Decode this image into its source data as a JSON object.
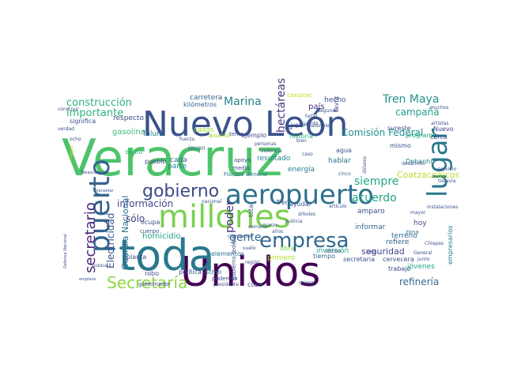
{
  "words": [
    {
      "text": "Veracruz",
      "color": "#4ec36b"
    },
    {
      "text": "Unidos",
      "color": "#440154"
    },
    {
      "text": "toda",
      "color": "#2a788e"
    },
    {
      "text": "Nuevo León",
      "color": "#3b528b"
    },
    {
      "text": "millones",
      "color": "#7ad151"
    },
    {
      "text": "aeropuerto",
      "color": "#2c718e"
    },
    {
      "text": "lugar",
      "color": "#2a788e"
    },
    {
      "text": "puerto",
      "color": "#33638d"
    },
    {
      "text": "empresa",
      "color": "#31688e"
    },
    {
      "text": "gobierno",
      "color": "#3e4a89"
    },
    {
      "text": "Secretaría",
      "color": "#8fd744"
    },
    {
      "text": "secretario",
      "color": "#482878"
    },
    {
      "text": "construcción",
      "color": "#2db27d"
    },
    {
      "text": "importante",
      "color": "#2db27d"
    },
    {
      "text": "Marina",
      "color": "#26828e"
    },
    {
      "text": "Tren Maya",
      "color": "#21918c"
    },
    {
      "text": "campaña",
      "color": "#1f9e89"
    },
    {
      "text": "acuerdo",
      "color": "#20a386"
    },
    {
      "text": "siempre",
      "color": "#22a884"
    },
    {
      "text": "gente",
      "color": "#31688e"
    },
    {
      "text": "información",
      "color": "#3e4a89"
    },
    {
      "text": "refinería",
      "color": "#31688e"
    },
    {
      "text": "Comisión Federal",
      "color": "#21918c"
    },
    {
      "text": "hectáreas",
      "color": "#46337e"
    },
    {
      "text": "Coatzacoalcos",
      "color": "#b5de2b"
    },
    {
      "text": "Electricidad",
      "color": "#3b528b"
    },
    {
      "text": "Guardia Nacional",
      "color": "#2c718e"
    },
    {
      "text": "seguridad",
      "color": "#414487"
    },
    {
      "text": "sólo",
      "color": "#414487"
    },
    {
      "text": "homicidio",
      "color": "#1fa187"
    },
    {
      "text": "poder",
      "color": "#46327e"
    },
    {
      "text": "gasolina",
      "color": "#3dbc74"
    },
    {
      "text": "respecto",
      "color": "#3e4989"
    },
    {
      "text": "significa",
      "color": "#3b528b"
    },
    {
      "text": "Tulum",
      "color": "#2a788e"
    },
    {
      "text": "carretera",
      "color": "#33638d"
    },
    {
      "text": "kilómetros",
      "color": "#33638d"
    },
    {
      "text": "país",
      "color": "#472d7b"
    },
    {
      "text": "hecho",
      "color": "#3b528b"
    },
    {
      "text": "favor",
      "color": "#3e4a89"
    },
    {
      "text": "sureste",
      "color": "#3b528b"
    },
    {
      "text": "programa",
      "color": "#22a884"
    },
    {
      "text": "Nuevo",
      "color": "#3e4a89"
    },
    {
      "text": "cerca",
      "color": "#3e4a89"
    },
    {
      "text": "agua",
      "color": "#3b528b"
    },
    {
      "text": "mismo",
      "color": "#3b528b"
    },
    {
      "text": "Debanhi",
      "color": "#26828e"
    },
    {
      "text": "hoy",
      "color": "#3e4a89"
    },
    {
      "text": "hablar",
      "color": "#2a788e"
    },
    {
      "text": "energía",
      "color": "#2a788e"
    },
    {
      "text": "resultado",
      "color": "#26828e"
    },
    {
      "text": "historia",
      "color": "#2db27d"
    },
    {
      "text": "cada",
      "color": "#31688e"
    },
    {
      "text": "parte",
      "color": "#26828e"
    },
    {
      "text": "joven",
      "color": "#31688e"
    },
    {
      "text": "delito",
      "color": "#2db27d"
    },
    {
      "text": "pueblo",
      "color": "#414487"
    },
    {
      "text": "asunto",
      "color": "#a0da39"
    },
    {
      "text": "ejemplo",
      "color": "#3e4989"
    },
    {
      "text": "tema",
      "color": "#3b528b"
    },
    {
      "text": "casos",
      "color": "#a0da39"
    },
    {
      "text": "conocer",
      "color": "#bddf26"
    },
    {
      "text": "amparo",
      "color": "#3b528b"
    },
    {
      "text": "informar",
      "color": "#31688e"
    },
    {
      "text": "terreno",
      "color": "#31688e"
    },
    {
      "text": "refiere",
      "color": "#31688e"
    },
    {
      "text": "zona",
      "color": "#2a788e"
    },
    {
      "text": "inversión",
      "color": "#20a386"
    },
    {
      "text": "obra",
      "color": "#7ad151"
    },
    {
      "text": "primero",
      "color": "#b5de2b"
    },
    {
      "text": "tiempo",
      "color": "#31688e"
    },
    {
      "text": "trabajo",
      "color": "#3e4a89"
    },
    {
      "text": "jóvenes",
      "color": "#20a386"
    },
    {
      "text": "secretaria",
      "color": "#3b528b"
    },
    {
      "text": "cervecera",
      "color": "#3b528b"
    },
    {
      "text": "robo",
      "color": "#3e4989"
    },
    {
      "text": "gobernador",
      "color": "#3e4989"
    },
    {
      "text": "política",
      "color": "#3b528b"
    },
    {
      "text": "istmo",
      "color": "#2a788e"
    },
    {
      "text": "podemos",
      "color": "#3b528b"
    },
    {
      "text": "cosa",
      "color": "#3b528b"
    },
    {
      "text": "elementos",
      "color": "#2a788e"
    },
    {
      "text": "planta",
      "color": "#3b528b"
    },
    {
      "text": "ocupa",
      "color": "#3b528b"
    },
    {
      "text": "cuerpo",
      "color": "#3b528b"
    },
    {
      "text": "total",
      "color": "#3b528b"
    },
    {
      "text": "ayudar",
      "color": "#3b528b"
    },
    {
      "text": "Tren",
      "color": "#3b528b"
    },
    {
      "text": "empresarios",
      "color": "#2a788e"
    },
    {
      "text": "seis",
      "color": "#3b528b"
    },
    {
      "text": "Fiscalía General",
      "color": "#2a788e"
    },
    {
      "text": "media",
      "color": "#3b528b"
    },
    {
      "text": "apoyo",
      "color": "#3e4989"
    },
    {
      "text": "servicio",
      "color": "#3b528b"
    },
    {
      "text": "dólares",
      "color": "#3b528b"
    },
    {
      "text": "todavía",
      "color": "#3b528b"
    },
    {
      "text": "cinco",
      "color": "#3b528b"
    },
    {
      "text": "personas",
      "color": "#3b528b"
    },
    {
      "text": "violencia",
      "color": "#3b528b"
    },
    {
      "text": "bien",
      "color": "#3b528b"
    },
    {
      "text": "caso",
      "color": "#3b528b"
    },
    {
      "text": "construir",
      "color": "#3b528b"
    },
    {
      "text": "verdad",
      "color": "#3b528b"
    },
    {
      "text": "ocho",
      "color": "#3b528b"
    },
    {
      "text": "llegar",
      "color": "#b5de2b"
    },
    {
      "text": "Tabasco",
      "color": "#3b528b"
    },
    {
      "text": "bienestar",
      "color": "#3b528b"
    },
    {
      "text": "nacional",
      "color": "#3b528b"
    },
    {
      "text": "gobierno federal",
      "color": "#3b528b"
    },
    {
      "text": "región",
      "color": "#3b528b"
    },
    {
      "text": "pública",
      "color": "#3b528b"
    },
    {
      "text": "empleos",
      "color": "#3b528b"
    },
    {
      "text": "Defensa Nacional",
      "color": "#3b528b"
    },
    {
      "text": "marzo",
      "color": "#3b528b"
    },
    {
      "text": "años",
      "color": "#3b528b"
    },
    {
      "text": "último",
      "color": "#3b528b"
    },
    {
      "text": "instalaciones",
      "color": "#3b528b"
    },
    {
      "text": "mayor",
      "color": "#3b528b"
    },
    {
      "text": "Chiapas",
      "color": "#3b528b"
    },
    {
      "text": "junto",
      "color": "#3b528b"
    },
    {
      "text": "presidente",
      "color": "#3b528b"
    },
    {
      "text": "hotel",
      "color": "#3b528b"
    },
    {
      "text": "lugares",
      "color": "#3b528b"
    },
    {
      "text": "cuanto",
      "color": "#3b528b"
    },
    {
      "text": "muchos",
      "color": "#3b528b"
    },
    {
      "text": "artistas",
      "color": "#3b528b"
    },
    {
      "text": "desarrollo",
      "color": "#3b528b"
    },
    {
      "text": "General",
      "color": "#3b528b"
    },
    {
      "text": "artículo",
      "color": "#3b528b"
    },
    {
      "text": "árboles",
      "color": "#3b528b"
    },
    {
      "text": "Justicia",
      "color": "#3b528b"
    },
    {
      "text": "fuerza",
      "color": "#3b528b"
    },
    {
      "text": "corrupción",
      "color": "#3b528b"
    },
    {
      "text": "vuelo",
      "color": "#3b528b"
    },
    {
      "text": "semana",
      "color": "#3b528b"
    },
    {
      "text": "quiero",
      "color": "#3b528b"
    },
    {
      "text": "segundo",
      "color": "#3b528b"
    },
    {
      "text": "materiales",
      "color": "#3b528b"
    },
    {
      "text": "vida",
      "color": "#3b528b"
    }
  ]
}
